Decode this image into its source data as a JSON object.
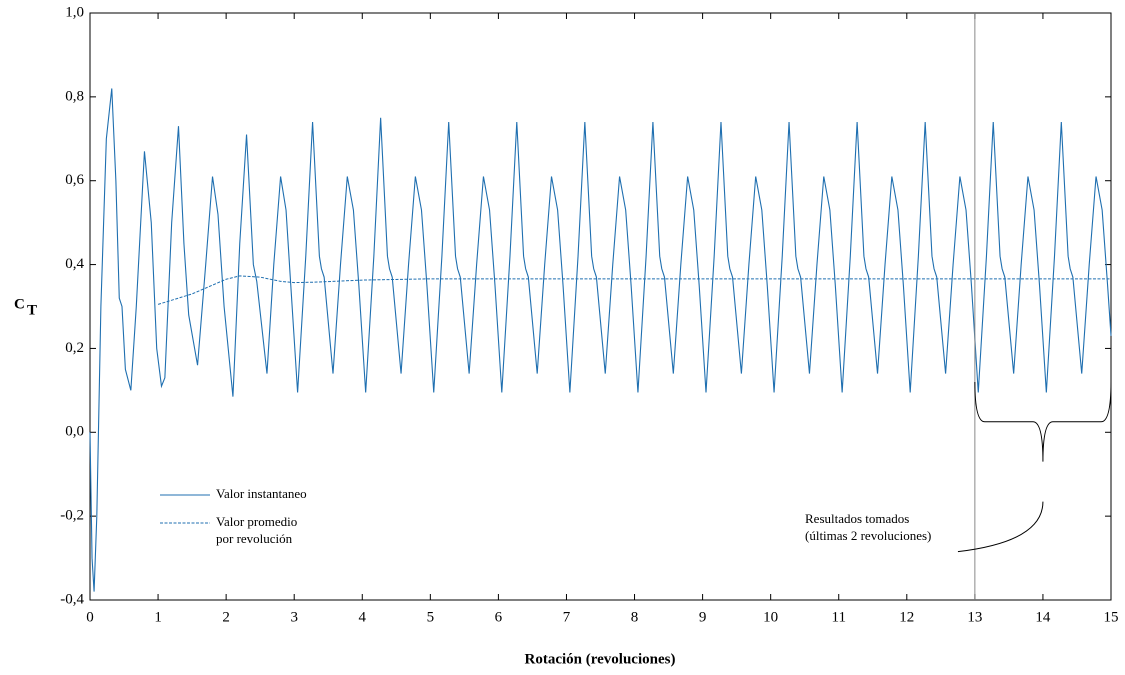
{
  "chart_data": {
    "type": "line",
    "xlabel": "Rotación (revoluciones)",
    "ylabel": "C",
    "ylabel_subscript": "T",
    "xlim": [
      0,
      15
    ],
    "xticks": [
      0,
      1,
      2,
      3,
      4,
      5,
      6,
      7,
      8,
      9,
      10,
      11,
      12,
      13,
      14,
      15
    ],
    "ylim": [
      -0.4,
      1.0
    ],
    "yticks": [
      {
        "value": -0.4,
        "label": "-0,4"
      },
      {
        "value": -0.2,
        "label": "-0,2"
      },
      {
        "value": 0,
        "label": "0,0"
      },
      {
        "value": 0.2,
        "label": "0,2"
      },
      {
        "value": 0.4,
        "label": "0,4"
      },
      {
        "value": 0.6,
        "label": "0,6"
      },
      {
        "value": 0.8,
        "label": "0,8"
      },
      {
        "value": 1.0,
        "label": "1,0"
      }
    ],
    "grid": false,
    "series": [
      {
        "name": "Valor instantaneo",
        "color": "#1f6fb0",
        "dash": "solid",
        "x": [
          0,
          0.03,
          0.06,
          0.1,
          0.16,
          0.24,
          0.32,
          0.38,
          0.43,
          0.47,
          0.52,
          0.6,
          0.68,
          0.8,
          0.9,
          0.98,
          1.05,
          1.1,
          1.2,
          1.3,
          1.38,
          1.45,
          1.58,
          1.7,
          1.8,
          1.88,
          1.97,
          2.1,
          2.2,
          2.3,
          2.4,
          2.45,
          2.6,
          2.7,
          2.8,
          2.88,
          2.95,
          3.05,
          3.17,
          3.27,
          3.37,
          3.4,
          3.44,
          3.57,
          3.68,
          3.78,
          3.87,
          3.95,
          4.05,
          4.17,
          4.27,
          4.37,
          4.4,
          4.44,
          4.57,
          4.68,
          4.78,
          4.87,
          4.95,
          5.05,
          5.17,
          5.27,
          5.37,
          5.4,
          5.44,
          5.57,
          5.68,
          5.78,
          5.87,
          5.95,
          6.05,
          6.17,
          6.27,
          6.37,
          6.4,
          6.44,
          6.57,
          6.68,
          6.78,
          6.87,
          6.95,
          7.05,
          7.17,
          7.27,
          7.37,
          7.4,
          7.44,
          7.57,
          7.68,
          7.78,
          7.87,
          7.95,
          8.05,
          8.17,
          8.27,
          8.37,
          8.4,
          8.44,
          8.57,
          8.68,
          8.78,
          8.87,
          8.95,
          9.05,
          9.17,
          9.27,
          9.37,
          9.4,
          9.44,
          9.57,
          9.68,
          9.78,
          9.87,
          9.95,
          10.05,
          10.17,
          10.27,
          10.37,
          10.4,
          10.44,
          10.57,
          10.68,
          10.78,
          10.87,
          10.95,
          11.05,
          11.17,
          11.27,
          11.37,
          11.4,
          11.44,
          11.57,
          11.68,
          11.78,
          11.87,
          11.95,
          12.05,
          12.17,
          12.27,
          12.37,
          12.4,
          12.44,
          12.57,
          12.68,
          12.78,
          12.87,
          12.95,
          13.05,
          13.17,
          13.27,
          13.37,
          13.4,
          13.44,
          13.57,
          13.68,
          13.78,
          13.87,
          13.95,
          14.05,
          14.17,
          14.27,
          14.37,
          14.4,
          14.44,
          14.57,
          14.68,
          14.78,
          14.87,
          14.95,
          15
        ],
        "values": [
          0,
          -0.3,
          -0.38,
          -0.2,
          0.3,
          0.7,
          0.82,
          0.6,
          0.32,
          0.3,
          0.15,
          0.1,
          0.3,
          0.67,
          0.5,
          0.2,
          0.11,
          0.13,
          0.5,
          0.73,
          0.45,
          0.28,
          0.16,
          0.4,
          0.61,
          0.52,
          0.3,
          0.085,
          0.45,
          0.71,
          0.4,
          0.36,
          0.14,
          0.4,
          0.61,
          0.53,
          0.35,
          0.095,
          0.42,
          0.74,
          0.42,
          0.39,
          0.37,
          0.14,
          0.4,
          0.61,
          0.53,
          0.35,
          0.095,
          0.42,
          0.75,
          0.42,
          0.39,
          0.37,
          0.14,
          0.4,
          0.61,
          0.53,
          0.35,
          0.095,
          0.42,
          0.74,
          0.42,
          0.39,
          0.37,
          0.14,
          0.4,
          0.61,
          0.53,
          0.35,
          0.095,
          0.42,
          0.74,
          0.42,
          0.39,
          0.37,
          0.14,
          0.4,
          0.61,
          0.53,
          0.35,
          0.095,
          0.42,
          0.74,
          0.42,
          0.39,
          0.37,
          0.14,
          0.4,
          0.61,
          0.53,
          0.35,
          0.095,
          0.42,
          0.74,
          0.42,
          0.39,
          0.37,
          0.14,
          0.4,
          0.61,
          0.53,
          0.35,
          0.095,
          0.42,
          0.74,
          0.42,
          0.39,
          0.37,
          0.14,
          0.4,
          0.61,
          0.53,
          0.35,
          0.095,
          0.42,
          0.74,
          0.42,
          0.39,
          0.37,
          0.14,
          0.4,
          0.61,
          0.53,
          0.35,
          0.095,
          0.42,
          0.74,
          0.42,
          0.39,
          0.37,
          0.14,
          0.4,
          0.61,
          0.53,
          0.35,
          0.095,
          0.42,
          0.74,
          0.42,
          0.39,
          0.37,
          0.14,
          0.4,
          0.61,
          0.53,
          0.35,
          0.095,
          0.42,
          0.74,
          0.42,
          0.39,
          0.37,
          0.14,
          0.4,
          0.61,
          0.53,
          0.35,
          0.095,
          0.42,
          0.74,
          0.42,
          0.39,
          0.37,
          0.14,
          0.4,
          0.61,
          0.53,
          0.35,
          0.23
        ]
      },
      {
        "name": "Valor promedio\npor revolución",
        "color": "#1f6fb0",
        "dash": "dotted",
        "x": [
          1,
          1.5,
          2,
          2.2,
          2.5,
          2.8,
          3,
          3.3,
          4,
          5,
          15
        ],
        "values": [
          0.305,
          0.33,
          0.365,
          0.373,
          0.37,
          0.36,
          0.357,
          0.358,
          0.363,
          0.366,
          0.366
        ]
      }
    ],
    "annotations": [
      {
        "text": [
          "Resultados tomados",
          "(últimas 2 revoluciones)"
        ],
        "span": [
          13,
          15
        ]
      }
    ]
  }
}
